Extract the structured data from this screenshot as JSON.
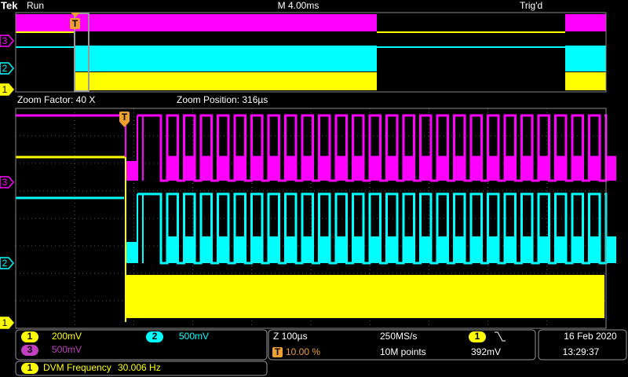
{
  "header": {
    "brand": "Tek",
    "status": "Run",
    "timebase": "M 4.00ms",
    "trigger_status": "Trig'd"
  },
  "zoom": {
    "factor": "Zoom Factor: 40 X",
    "position": "Zoom Position: 316µs"
  },
  "channel_markers": [
    "3",
    "2",
    "1"
  ],
  "trigger_marker": "T",
  "channels": [
    {
      "number": "1",
      "scale": "200mV"
    },
    {
      "number": "2",
      "scale": "500mV"
    },
    {
      "number": "3",
      "scale": "500mV"
    }
  ],
  "acquisition": {
    "zoom_scale": "Z 100µs",
    "trigger_position_icon": "T",
    "trigger_position": "10.00 %",
    "sample_rate": "250MS/s",
    "record_length": "10M points",
    "trigger_source": "1",
    "trigger_level": "392mV"
  },
  "datetime": {
    "date": "16 Feb 2020",
    "time": "13:29:37"
  },
  "measurement": {
    "channel": "1",
    "label": "DVM Frequency",
    "value": "30.006 Hz"
  }
}
